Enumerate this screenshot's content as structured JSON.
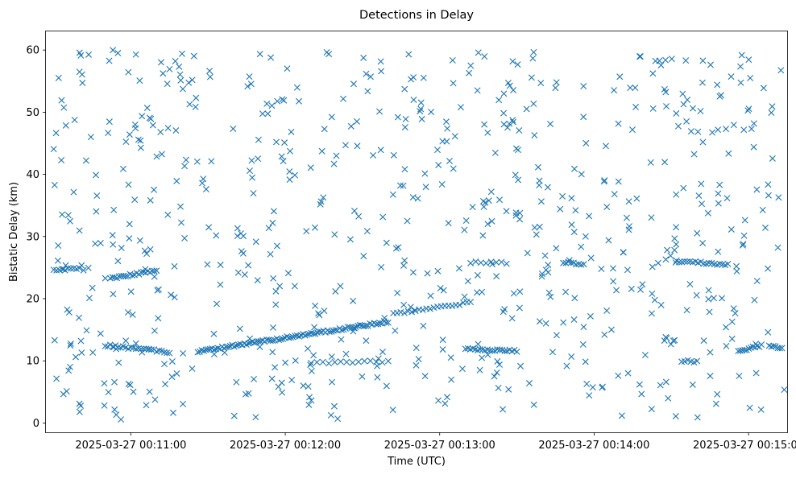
{
  "chart_data": {
    "type": "scatter",
    "title": "Detections in Delay",
    "xlabel": "Time (UTC)",
    "ylabel": "Bistatic Delay (km)",
    "marker": "x",
    "color": "#1f77b4",
    "grid": false,
    "legend": null,
    "x_axis": {
      "kind": "datetime",
      "range": [
        "2025-03-27 00:10:27",
        "2025-03-27 00:15:15"
      ],
      "ticks": [
        {
          "value": "2025-03-27 00:11:00",
          "label": "2025-03-27 00:11:00"
        },
        {
          "value": "2025-03-27 00:12:00",
          "label": "2025-03-27 00:12:00"
        },
        {
          "value": "2025-03-27 00:13:00",
          "label": "2025-03-27 00:13:00"
        },
        {
          "value": "2025-03-27 00:14:00",
          "label": "2025-03-27 00:14:00"
        },
        {
          "value": "2025-03-27 00:15:00",
          "label": "2025-03-27 00:15:00"
        }
      ]
    },
    "y_axis": {
      "range": [
        -1.5,
        63
      ],
      "ticks": [
        0,
        10,
        20,
        30,
        40,
        50,
        60
      ]
    },
    "series": [
      {
        "tracks": [
          {
            "t_start": "2025-03-27 00:10:30",
            "t_end": "2025-03-27 00:10:40",
            "y_start": 24.6,
            "y_end": 24.8,
            "count": 10
          },
          {
            "t_start": "2025-03-27 00:10:52",
            "t_end": "2025-03-27 00:11:10",
            "y_start": 23.3,
            "y_end": 24.5,
            "count": 22
          },
          {
            "t_start": "2025-03-27 00:10:50",
            "t_end": "2025-03-27 00:11:15",
            "y_start": 12.5,
            "y_end": 11.4,
            "count": 26
          },
          {
            "t_start": "2025-03-27 00:11:26",
            "t_end": "2025-03-27 00:12:40",
            "y_start": 11.5,
            "y_end": 16.3,
            "count": 95
          },
          {
            "t_start": "2025-03-27 00:12:42",
            "t_end": "2025-03-27 00:13:12",
            "y_start": 17.6,
            "y_end": 19.4,
            "count": 22
          },
          {
            "t_start": "2025-03-27 00:12:10",
            "t_end": "2025-03-27 00:12:40",
            "y_start": 9.7,
            "y_end": 9.9,
            "count": 14
          },
          {
            "t_start": "2025-03-27 00:13:10",
            "t_end": "2025-03-27 00:13:30",
            "y_start": 11.9,
            "y_end": 11.6,
            "count": 22
          },
          {
            "t_start": "2025-03-27 00:13:12",
            "t_end": "2025-03-27 00:13:26",
            "y_start": 25.8,
            "y_end": 25.8,
            "count": 8
          },
          {
            "t_start": "2025-03-27 00:13:48",
            "t_end": "2025-03-27 00:13:56",
            "y_start": 25.8,
            "y_end": 25.6,
            "count": 9
          },
          {
            "t_start": "2025-03-27 00:14:32",
            "t_end": "2025-03-27 00:14:52",
            "y_start": 26.0,
            "y_end": 25.5,
            "count": 20
          },
          {
            "t_start": "2025-03-27 00:14:34",
            "t_end": "2025-03-27 00:14:40",
            "y_start": 10.0,
            "y_end": 9.8,
            "count": 6
          },
          {
            "t_start": "2025-03-27 00:14:56",
            "t_end": "2025-03-27 00:15:05",
            "y_start": 11.5,
            "y_end": 12.5,
            "count": 12
          },
          {
            "t_start": "2025-03-27 00:15:08",
            "t_end": "2025-03-27 00:15:13",
            "y_start": 12.3,
            "y_end": 12.0,
            "count": 7
          }
        ],
        "scattered": {
          "t_start": "2025-03-27 00:10:30",
          "t_end": "2025-03-27 00:15:14",
          "y_min": 0.5,
          "y_max": 60.0,
          "count": 700
        }
      }
    ]
  }
}
